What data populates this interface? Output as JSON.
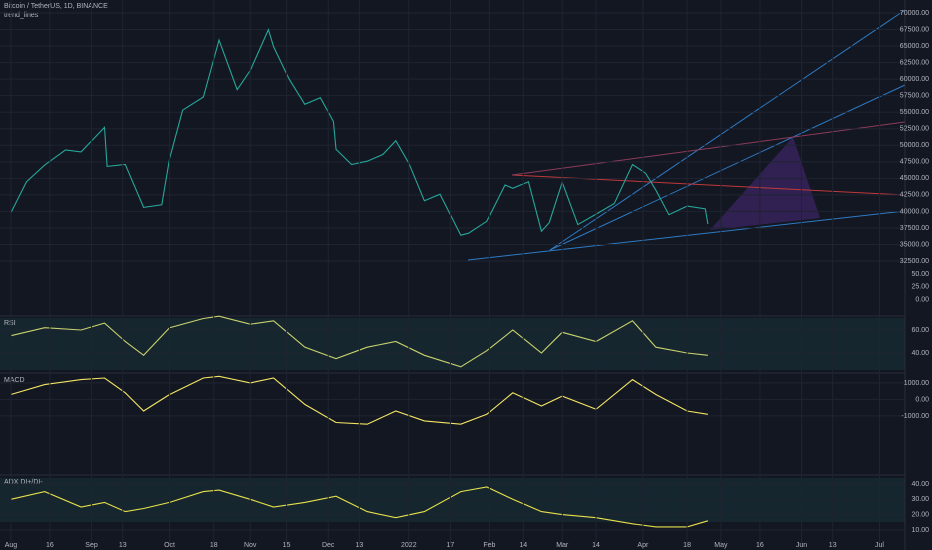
{
  "chart_data": [
    {
      "type": "line",
      "title": "Bitcoin / TetherUS, 1D, BINANCE",
      "subtitle": "trend_lines",
      "xlim": [
        -4.2,
        343.8
      ],
      "xticks": [
        {
          "value": 0,
          "label": "Aug"
        },
        {
          "value": 15,
          "label": "16"
        },
        {
          "value": 31,
          "label": "Sep"
        },
        {
          "value": 43,
          "label": "13"
        },
        {
          "value": 61,
          "label": "Oct"
        },
        {
          "value": 78,
          "label": "18"
        },
        {
          "value": 92,
          "label": "Nov"
        },
        {
          "value": 106,
          "label": "15"
        },
        {
          "value": 122,
          "label": "Dec"
        },
        {
          "value": 134,
          "label": "13"
        },
        {
          "value": 153,
          "label": "2022"
        },
        {
          "value": 169,
          "label": "17"
        },
        {
          "value": 184,
          "label": "Feb"
        },
        {
          "value": 197,
          "label": "14"
        },
        {
          "value": 212,
          "label": "Mar"
        },
        {
          "value": 225,
          "label": "14"
        },
        {
          "value": 243,
          "label": "Apr"
        },
        {
          "value": 260,
          "label": "18"
        },
        {
          "value": 273,
          "label": "May"
        },
        {
          "value": 288,
          "label": "16"
        },
        {
          "value": 304,
          "label": "Jun"
        },
        {
          "value": 316,
          "label": "13"
        },
        {
          "value": 334,
          "label": "Jul"
        }
      ],
      "ylim": [
        31140,
        71970
      ],
      "yticks": [
        {
          "value": 32500,
          "label": "32500.00"
        },
        {
          "value": 35000,
          "label": "35000.00"
        },
        {
          "value": 37500,
          "label": "37500.00"
        },
        {
          "value": 40000,
          "label": "40000.00"
        },
        {
          "value": 42500,
          "label": "42500.00"
        },
        {
          "value": 45000,
          "label": "45000.00"
        },
        {
          "value": 47500,
          "label": "47500.00"
        },
        {
          "value": 50000,
          "label": "50000.00"
        },
        {
          "value": 52500,
          "label": "52500.00"
        },
        {
          "value": 55000,
          "label": "55000.00"
        },
        {
          "value": 57500,
          "label": "57500.00"
        },
        {
          "value": 60000,
          "label": "60000.00"
        },
        {
          "value": 62500,
          "label": "62500.00"
        },
        {
          "value": 65000,
          "label": "65000.00"
        },
        {
          "value": 67500,
          "label": "67500.00"
        },
        {
          "value": 70000,
          "label": "70000.00"
        }
      ],
      "grid": true,
      "x": [
        0,
        6,
        13,
        21,
        27,
        36,
        37,
        44,
        51,
        58,
        61,
        66,
        74,
        80,
        87,
        92,
        99,
        101,
        107,
        113,
        119,
        124,
        125,
        131,
        137,
        143,
        148,
        153,
        159,
        165,
        173,
        176,
        183,
        190,
        193,
        199,
        204,
        207,
        212,
        218,
        225,
        232,
        239,
        244,
        248,
        253,
        260,
        267,
        268
      ],
      "series": [
        {
          "color": "#26a69a",
          "values": [
            39800,
            44500,
            47000,
            49300,
            49000,
            52700,
            46800,
            47100,
            40600,
            41000,
            48000,
            55300,
            57300,
            65900,
            58400,
            61300,
            67500,
            64900,
            60000,
            56200,
            57200,
            53600,
            49400,
            47100,
            47600,
            48600,
            50700,
            47300,
            41600,
            42600,
            36400,
            36700,
            38500,
            44000,
            43500,
            44500,
            37000,
            38300,
            44400,
            38000,
            39600,
            41200,
            47100,
            45800,
            43200,
            39500,
            40800,
            40400,
            38100
          ]
        }
      ]
    },
    {
      "type": "line",
      "ylim": [
        -32,
        58
      ],
      "yticks": [
        {
          "value": 50,
          "label": "50.00"
        },
        {
          "value": 25,
          "label": "25.00"
        },
        {
          "value": 0,
          "label": "0.00"
        }
      ]
    },
    {
      "type": "line",
      "title": "RSI",
      "ylim": [
        25.2,
        70.4
      ],
      "yticks": [
        {
          "value": 60,
          "label": "60.00"
        },
        {
          "value": 40,
          "label": "40.00"
        }
      ],
      "x": [
        0,
        13,
        27,
        36,
        44,
        51,
        61,
        74,
        80,
        92,
        101,
        113,
        125,
        137,
        148,
        159,
        173,
        183,
        193,
        204,
        212,
        225,
        239,
        248,
        260,
        268
      ],
      "series": [
        {
          "color": "#c8d26e",
          "values": [
            55,
            62,
            60,
            66,
            50,
            38,
            62,
            70,
            72,
            65,
            68,
            45,
            35,
            45,
            50,
            38,
            28,
            42,
            60,
            40,
            58,
            50,
            68,
            45,
            40,
            38
          ]
        }
      ]
    },
    {
      "type": "line",
      "title": "MACD",
      "ylim": [
        -4400,
        1480
      ],
      "yticks": [
        {
          "value": 1000,
          "label": "1000.00"
        },
        {
          "value": 0,
          "label": "0.00"
        },
        {
          "value": -1000,
          "label": "-1000.00"
        }
      ],
      "x": [
        0,
        13,
        27,
        36,
        44,
        51,
        61,
        74,
        80,
        92,
        101,
        113,
        125,
        137,
        148,
        159,
        173,
        183,
        193,
        204,
        212,
        225,
        239,
        248,
        260,
        268
      ],
      "series": [
        {
          "color": "#f5e663",
          "values": [
            300,
            900,
            1200,
            1300,
            400,
            -700,
            300,
            1300,
            1400,
            1000,
            1300,
            -300,
            -1400,
            -1500,
            -700,
            -1300,
            -1500,
            -900,
            400,
            -400,
            200,
            -600,
            1200,
            300,
            -700,
            -900
          ]
        }
      ]
    },
    {
      "type": "line",
      "title": "ADX DI+/DI-",
      "ylim": [
        0.2,
        43.9
      ],
      "yticks": [
        {
          "value": 40,
          "label": "40.00"
        },
        {
          "value": 30,
          "label": "30.00"
        },
        {
          "value": 20,
          "label": "20.00"
        },
        {
          "value": 10,
          "label": "10.00"
        }
      ],
      "x": [
        0,
        13,
        27,
        36,
        44,
        51,
        61,
        74,
        80,
        92,
        101,
        113,
        125,
        137,
        148,
        159,
        173,
        183,
        193,
        204,
        212,
        225,
        239,
        248,
        260,
        268
      ],
      "series": [
        {
          "color": "#e6e14b",
          "values": [
            30,
            35,
            25,
            28,
            22,
            24,
            28,
            35,
            36,
            30,
            25,
            28,
            32,
            22,
            18,
            22,
            35,
            38,
            30,
            22,
            20,
            18,
            14,
            12,
            12,
            16
          ]
        }
      ]
    }
  ]
}
